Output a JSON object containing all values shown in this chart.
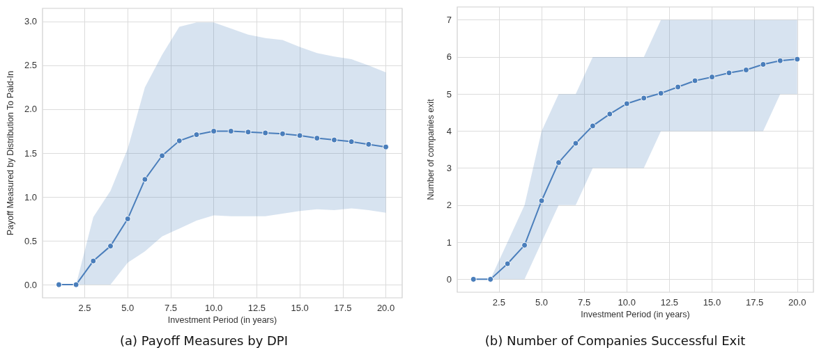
{
  "chart_data": [
    {
      "type": "line",
      "title": "(a) Payoff Measures by DPI",
      "xlabel": "Investment Period (in years)",
      "ylabel": "Payoff Measured by Distribution To Paid-In",
      "x": [
        1,
        2,
        3,
        4,
        5,
        6,
        7,
        8,
        9,
        10,
        11,
        12,
        13,
        14,
        15,
        16,
        17,
        18,
        19,
        20
      ],
      "series": [
        {
          "color": "#4a7ebb",
          "values": [
            0,
            0,
            0.27,
            0.44,
            0.75,
            1.2,
            1.47,
            1.64,
            1.71,
            1.75,
            1.75,
            1.74,
            1.73,
            1.72,
            1.7,
            1.67,
            1.65,
            1.63,
            1.6,
            1.57
          ],
          "lower": [
            0,
            0,
            0,
            0,
            0.25,
            0.38,
            0.55,
            0.64,
            0.73,
            0.79,
            0.78,
            0.78,
            0.78,
            0.81,
            0.84,
            0.86,
            0.85,
            0.87,
            0.85,
            0.82
          ],
          "upper": [
            0,
            0,
            0.77,
            1.07,
            1.55,
            2.25,
            2.62,
            2.94,
            2.99,
            2.99,
            2.92,
            2.85,
            2.81,
            2.79,
            2.71,
            2.64,
            2.6,
            2.57,
            2.5,
            2.42
          ]
        }
      ],
      "xlim": [
        0.05,
        20.95
      ],
      "xticks": [
        {
          "value": 2.5,
          "label": "2.5"
        },
        {
          "value": 5,
          "label": "5.0"
        },
        {
          "value": 7.5,
          "label": "7.5"
        },
        {
          "value": 10,
          "label": "10.0"
        },
        {
          "value": 12.5,
          "label": "12.5"
        },
        {
          "value": 15,
          "label": "15.0"
        },
        {
          "value": 17.5,
          "label": "17.5"
        },
        {
          "value": 20,
          "label": "20.0"
        }
      ],
      "ylim": [
        -0.15,
        3.15
      ],
      "yticks": [
        {
          "value": 0,
          "label": "0.0"
        },
        {
          "value": 0.5,
          "label": "0.5"
        },
        {
          "value": 1,
          "label": "1.0"
        },
        {
          "value": 1.5,
          "label": "1.5"
        },
        {
          "value": 2,
          "label": "2.0"
        },
        {
          "value": 2.5,
          "label": "2.5"
        },
        {
          "value": 3,
          "label": "3.0"
        }
      ],
      "grid": true,
      "marker": "circle",
      "line_style": "solid"
    },
    {
      "type": "line",
      "title": "(b) Number of Companies Successful Exit",
      "xlabel": "Investment Period (in years)",
      "ylabel": "Number of companies exit",
      "x": [
        1,
        2,
        3,
        4,
        5,
        6,
        7,
        8,
        9,
        10,
        11,
        12,
        13,
        14,
        15,
        16,
        17,
        18,
        19,
        20
      ],
      "series": [
        {
          "color": "#4a7ebb",
          "values": [
            0,
            0,
            0.42,
            0.92,
            2.12,
            3.15,
            3.67,
            4.14,
            4.46,
            4.74,
            4.89,
            5.02,
            5.19,
            5.36,
            5.46,
            5.57,
            5.65,
            5.8,
            5.9,
            5.94
          ],
          "lower": [
            0,
            0,
            0,
            0,
            1,
            2,
            2,
            3,
            3,
            3,
            3,
            4,
            4,
            4,
            4,
            4,
            4,
            4,
            5,
            5
          ],
          "upper": [
            0,
            0,
            1,
            2,
            4,
            5,
            5,
            6,
            6,
            6,
            6,
            7,
            7,
            7,
            7,
            7,
            7,
            7,
            7,
            7
          ]
        }
      ],
      "xlim": [
        0.05,
        20.95
      ],
      "xticks": [
        {
          "value": 2.5,
          "label": "2.5"
        },
        {
          "value": 5,
          "label": "5.0"
        },
        {
          "value": 7.5,
          "label": "7.5"
        },
        {
          "value": 10,
          "label": "10.0"
        },
        {
          "value": 12.5,
          "label": "12.5"
        },
        {
          "value": 15,
          "label": "15.0"
        },
        {
          "value": 17.5,
          "label": "17.5"
        },
        {
          "value": 20,
          "label": "20.0"
        }
      ],
      "ylim": [
        -0.35,
        7.35
      ],
      "yticks": [
        0,
        1,
        2,
        3,
        4,
        5,
        6,
        7
      ],
      "grid": true,
      "marker": "circle",
      "line_style": "solid"
    }
  ]
}
